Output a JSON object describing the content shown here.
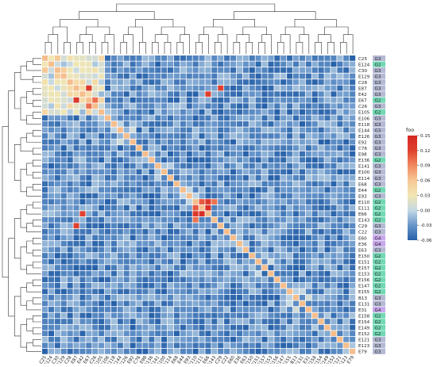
{
  "chart_data": {
    "type": "heatmap",
    "rows": [
      "C25",
      "E124",
      "C30",
      "E129",
      "C28",
      "E87",
      "E42",
      "E67",
      "C26",
      "E105",
      "E106",
      "E118",
      "E144",
      "E126",
      "E92",
      "C76",
      "E98",
      "E136",
      "E141",
      "E100",
      "E114",
      "E68",
      "E44",
      "E93",
      "E110",
      "E111",
      "E66",
      "E143",
      "C29",
      "C22",
      "E60",
      "E36",
      "E63",
      "E150",
      "E151",
      "E157",
      "E153",
      "E156",
      "E147",
      "E155",
      "B13",
      "E131",
      "E31",
      "E158",
      "E154",
      "E149",
      "E152",
      "E121",
      "E123",
      "E79"
    ],
    "groups": [
      "G3",
      "G2",
      "G3",
      "G3",
      "G3",
      "G3",
      "G3",
      "G2",
      "G3",
      "G2",
      "G3",
      "G3",
      "G3",
      "G3",
      "G3",
      "G3",
      "G3",
      "G2",
      "G3",
      "G3",
      "G3",
      "G3",
      "G2",
      "G3",
      "G2",
      "G2",
      "G2",
      "G2",
      "G3",
      "G3",
      "G4",
      "G4",
      "G3",
      "G2",
      "G2",
      "G2",
      "G2",
      "G2",
      "G2",
      "G2",
      "G3",
      "G3",
      "G4",
      "G2",
      "G2",
      "G2",
      "G2",
      "G3",
      "G3",
      "G3"
    ],
    "columns_match_rows": true,
    "legend": {
      "title": "foo",
      "ticks": [
        0.15,
        0.12,
        0.09,
        0.06,
        0.03,
        0.0,
        -0.03,
        -0.06
      ],
      "min": -0.06,
      "max": 0.15
    },
    "group_colors": {
      "G2": "#72d8b4",
      "G3": "#b4b9d3",
      "G4": "#c8a8ec"
    },
    "highlights": [
      {
        "r": "E42",
        "c": "E66",
        "v": 0.12
      },
      {
        "r": "E66",
        "c": "E42",
        "v": 0.12
      },
      {
        "r": "E87",
        "c": "E67",
        "v": 0.13
      },
      {
        "r": "E67",
        "c": "E87",
        "v": 0.13
      },
      {
        "r": "E111",
        "c": "E66",
        "v": 0.14
      },
      {
        "r": "E66",
        "c": "E111",
        "v": 0.14
      },
      {
        "r": "E110",
        "c": "E66",
        "v": 0.13
      },
      {
        "r": "E66",
        "c": "E110",
        "v": 0.13
      },
      {
        "r": "E110",
        "c": "E111",
        "v": 0.11
      },
      {
        "r": "E111",
        "c": "E110",
        "v": 0.11
      },
      {
        "r": "E143",
        "c": "E110",
        "v": 0.1
      },
      {
        "r": "E110",
        "c": "E143",
        "v": 0.1
      },
      {
        "r": "C29",
        "c": "E87",
        "v": 0.12
      },
      {
        "r": "E87",
        "c": "C29",
        "v": 0.12
      },
      {
        "r": "E67",
        "c": "C26",
        "v": 0.1
      },
      {
        "r": "C26",
        "c": "E67",
        "v": 0.1
      }
    ]
  }
}
